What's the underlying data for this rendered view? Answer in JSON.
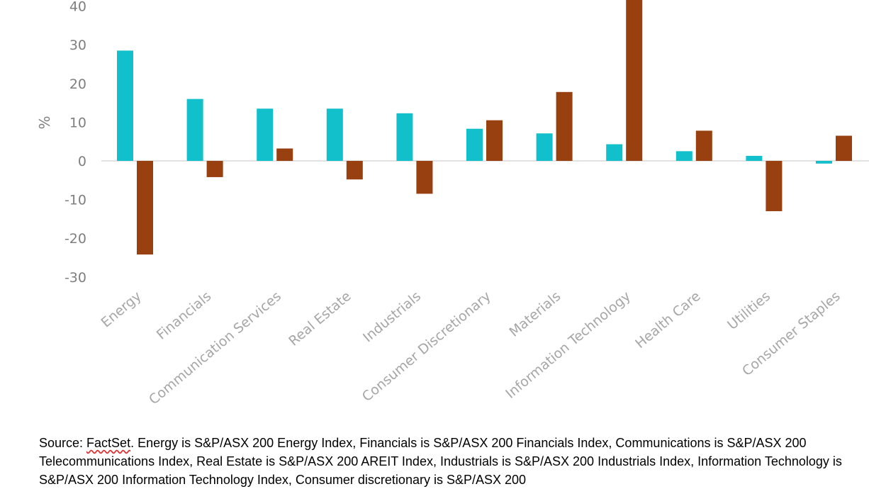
{
  "chart_data": {
    "type": "bar",
    "title": "",
    "xlabel": "",
    "ylabel": "%",
    "ylim": [
      -30,
      40
    ],
    "yticks": [
      40,
      30,
      20,
      10,
      0,
      -10,
      -20,
      -30
    ],
    "grid": false,
    "legend": "none",
    "categories": [
      "Energy",
      "Financials",
      "Communication Services",
      "Real Estate",
      "Industrials",
      "Consumer Discretionary",
      "Materials",
      "Information Technology",
      "Health Care",
      "Utilities",
      "Consumer Staples"
    ],
    "series": [
      {
        "color": "#12c0cc",
        "values": [
          28.5,
          16,
          13.5,
          13.5,
          12.3,
          8.3,
          7.1,
          4.3,
          2.5,
          1.3,
          -0.7
        ]
      },
      {
        "color": "#994010",
        "values": [
          -24.2,
          -4.2,
          3.2,
          -4.8,
          -8.5,
          10.5,
          17.8,
          44,
          7.8,
          -13,
          6.5
        ]
      }
    ]
  },
  "source": {
    "first_word": "FactSet",
    "text_before": "Source: ",
    "text_after": ". Energy is S&P/ASX 200 Energy Index, Financials is S&P/ASX 200 Financials Index, Communications is S&P/ASX 200 Telecommunications Index, Real Estate is S&P/ASX 200 AREIT Index, Industrials is S&P/ASX 200 Industrials Index, Information Technology is S&P/ASX 200 Information Technology Index, Consumer discretionary is S&P/ASX 200"
  }
}
